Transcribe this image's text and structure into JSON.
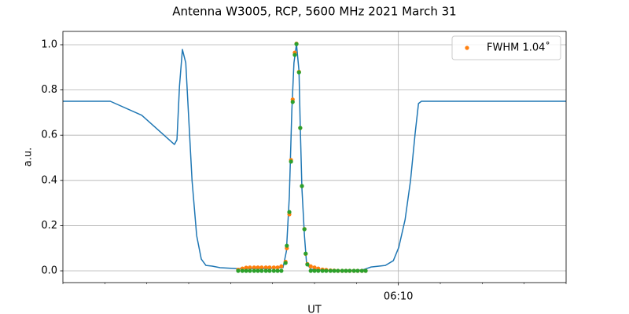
{
  "chart_data": {
    "type": "line",
    "title": "Antenna W3005, RCP, 5600 MHz 2021 March 31",
    "x_label": "UT",
    "y_label": "a.u.",
    "xlim": [
      362,
      374
    ],
    "xticks": [
      {
        "value": 370,
        "label": "06:10"
      }
    ],
    "xminorticks": [
      362,
      363,
      364,
      365,
      366,
      367,
      368,
      369,
      371,
      372,
      373,
      374
    ],
    "ylim": [
      -0.052,
      1.059
    ],
    "yticks": [
      {
        "value": 0,
        "label": "0.0"
      },
      {
        "value": 0.2,
        "label": "0.2"
      },
      {
        "value": 0.4,
        "label": "0.4"
      },
      {
        "value": 0.6,
        "label": "0.6"
      },
      {
        "value": 0.8,
        "label": "0.8"
      },
      {
        "value": 1.0,
        "label": "1.0"
      }
    ],
    "grid": true,
    "legend": "upper right",
    "series": [
      {
        "type": "line",
        "color": "#1f77b4",
        "x": [
          362.0,
          363.13,
          363.88,
          364.66,
          364.72,
          364.78,
          364.85,
          364.93,
          365.0,
          365.08,
          365.19,
          365.3,
          365.41,
          365.56,
          365.75,
          366.13,
          366.88,
          367.25,
          367.33,
          367.4,
          367.46,
          367.51,
          367.57,
          367.63,
          367.66,
          367.7,
          367.76,
          367.81,
          367.91,
          368.38,
          369.13,
          369.35,
          369.69,
          369.88,
          370.01,
          370.16,
          370.29,
          370.4,
          370.48,
          370.55,
          374.0
        ],
        "values": [
          0.75,
          0.75,
          0.688,
          0.559,
          0.58,
          0.816,
          0.979,
          0.92,
          0.677,
          0.399,
          0.156,
          0.052,
          0.024,
          0.021,
          0.014,
          0.01,
          0.01,
          0.014,
          0.087,
          0.33,
          0.712,
          0.92,
          1.003,
          0.885,
          0.642,
          0.365,
          0.156,
          0.035,
          0.007,
          0,
          0.003,
          0.017,
          0.024,
          0.045,
          0.104,
          0.226,
          0.399,
          0.608,
          0.74,
          0.75,
          0.75
        ]
      },
      {
        "type": "scatter",
        "name": "FWHM 1.04˚",
        "color": "#ff7f0e",
        "x": [
          366.18,
          366.28,
          366.37,
          366.46,
          366.56,
          366.65,
          366.74,
          366.84,
          366.93,
          367.03,
          367.12,
          367.21,
          367.31,
          367.34,
          367.4,
          367.44,
          367.48,
          367.53,
          367.57,
          367.63,
          367.66,
          367.7,
          367.76,
          367.79,
          367.83,
          367.91,
          368.0,
          368.09,
          368.19,
          368.28,
          368.38,
          368.47,
          368.56,
          368.66,
          368.75,
          368.84,
          368.94,
          369.03,
          369.13,
          369.22
        ],
        "values": [
          0.005,
          0.01,
          0.014,
          0.015,
          0.015,
          0.015,
          0.015,
          0.015,
          0.015,
          0.015,
          0.015,
          0.02,
          0.04,
          0.1,
          0.25,
          0.49,
          0.758,
          0.965,
          1.005,
          0.88,
          0.632,
          0.375,
          0.185,
          0.075,
          0.03,
          0.02,
          0.015,
          0.01,
          0.006,
          0.004,
          0.002,
          0.001,
          0,
          0,
          0,
          0,
          0,
          0,
          0,
          0
        ]
      },
      {
        "type": "scatter",
        "color": "#2ca02c",
        "x": [
          366.18,
          366.28,
          366.37,
          366.46,
          366.56,
          366.65,
          366.74,
          366.84,
          366.93,
          367.03,
          367.12,
          367.21,
          367.31,
          367.34,
          367.4,
          367.44,
          367.48,
          367.53,
          367.57,
          367.63,
          367.66,
          367.7,
          367.76,
          367.79,
          367.83,
          367.91,
          368.0,
          368.09,
          368.19,
          368.28,
          368.38,
          368.47,
          368.56,
          368.66,
          368.75,
          368.84,
          368.94,
          369.03,
          369.13,
          369.22
        ],
        "values": [
          0,
          0,
          0,
          0,
          0,
          0,
          0,
          0,
          0,
          0,
          0,
          0,
          0.035,
          0.111,
          0.26,
          0.483,
          0.747,
          0.955,
          1.003,
          0.878,
          0.632,
          0.375,
          0.184,
          0.076,
          0.028,
          0,
          0,
          0,
          0,
          0,
          0,
          0,
          0,
          0,
          0,
          0,
          0,
          0,
          0,
          0
        ]
      }
    ]
  }
}
